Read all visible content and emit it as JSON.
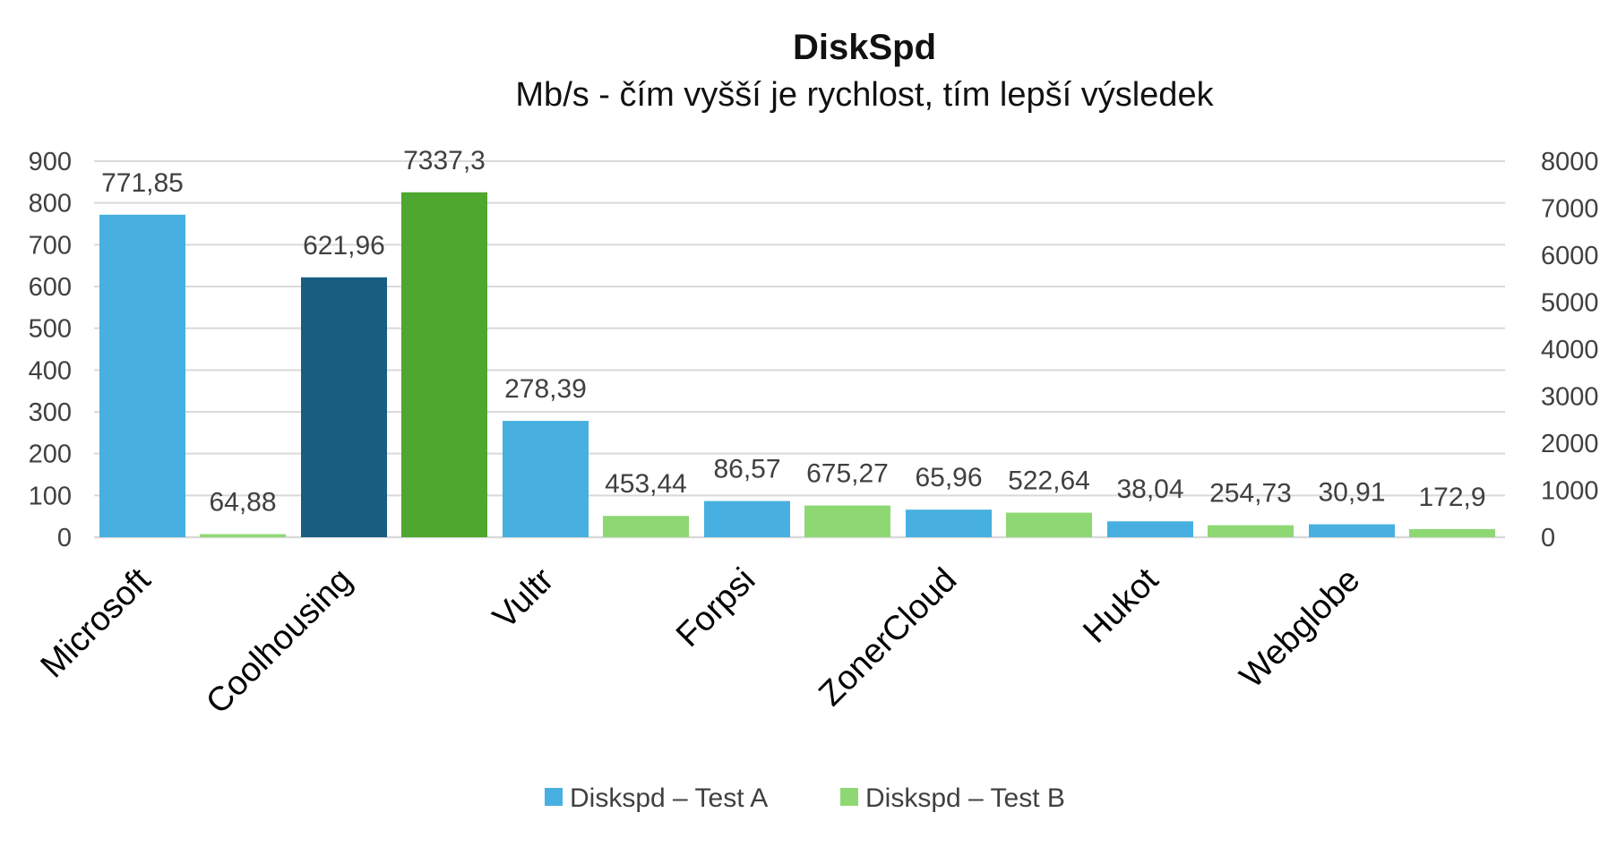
{
  "chart_data": {
    "type": "bar",
    "title": "DiskSpd",
    "subtitle": "Mb/s - čím vyšší je rychlost, tím lepší výsledek",
    "categories": [
      "Microsoft",
      "Coolhousing",
      "Vultr",
      "Forpsi",
      "ZonerCloud",
      "Hukot",
      "Webglobe"
    ],
    "axes": {
      "primary": {
        "min": 0,
        "max": 900,
        "step": 100,
        "ticks": [
          "0",
          "100",
          "200",
          "300",
          "400",
          "500",
          "600",
          "700",
          "800",
          "900"
        ]
      },
      "secondary": {
        "min": 0,
        "max": 8000,
        "step": 1000,
        "ticks": [
          "0",
          "1000",
          "2000",
          "3000",
          "4000",
          "5000",
          "6000",
          "7000",
          "8000"
        ]
      }
    },
    "grid": true,
    "legend_position": "bottom",
    "series": [
      {
        "name": "Diskspd – Test A",
        "axis": "primary",
        "color": "#47B0E0",
        "values": [
          771.85,
          621.96,
          278.39,
          86.57,
          65.96,
          38.04,
          30.91
        ],
        "labels": [
          "771,85",
          "621,96",
          "278,39",
          "86,57",
          "65,96",
          "38,04",
          "30,91"
        ],
        "point_colors": [
          "#47B0E0",
          "#175E81",
          "#47B0E0",
          "#47B0E0",
          "#47B0E0",
          "#47B0E0",
          "#47B0E0"
        ]
      },
      {
        "name": "Diskspd – Test B",
        "axis": "secondary",
        "color": "#8ED873",
        "values": [
          64.88,
          7337.3,
          453.44,
          675.27,
          522.64,
          254.73,
          172.9
        ],
        "labels": [
          "64,88",
          "7337,3",
          "453,44",
          "675,27",
          "522,64",
          "254,73",
          "172,9"
        ],
        "point_colors": [
          "#8ED873",
          "#4EA72E",
          "#8ED873",
          "#8ED873",
          "#8ED873",
          "#8ED873",
          "#8ED873"
        ]
      }
    ]
  }
}
